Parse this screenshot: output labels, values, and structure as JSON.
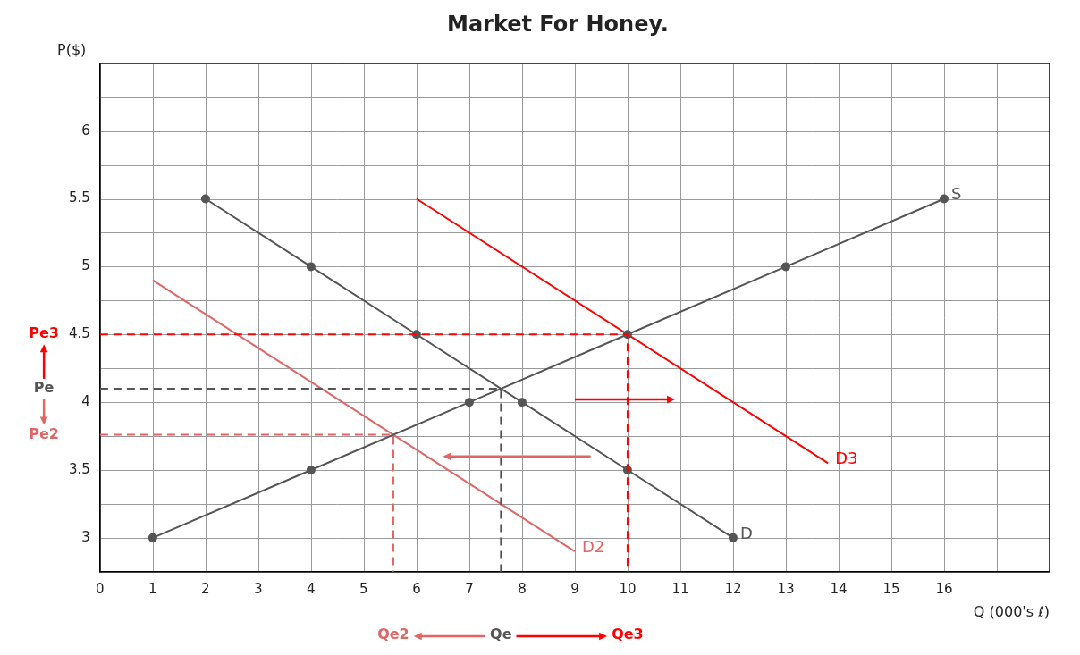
{
  "chart_data": {
    "type": "line",
    "title": "Market For Honey.",
    "x_label": "Q (000's ℓ)",
    "y_label": "P($)",
    "xlim": [
      0,
      18
    ],
    "xticks": [
      0,
      1,
      2,
      3,
      4,
      5,
      6,
      7,
      8,
      9,
      10,
      11,
      12,
      13,
      14,
      15,
      16
    ],
    "ylim": [
      2.75,
      6.5
    ],
    "yticks": [
      3,
      3.5,
      4,
      4.5,
      5,
      5.5,
      6
    ],
    "grid": true,
    "series": [
      {
        "name": "S",
        "color": "#555555",
        "marker": "circle",
        "line_style": "solid",
        "x": [
          1,
          4,
          7,
          10,
          13,
          16
        ],
        "values": [
          3,
          3.5,
          4,
          4.5,
          5,
          5.5
        ]
      },
      {
        "name": "D",
        "color": "#555555",
        "marker": "circle",
        "line_style": "solid",
        "x": [
          2,
          4,
          6,
          8,
          10,
          12
        ],
        "values": [
          5.5,
          5,
          4.5,
          4,
          3.5,
          3
        ]
      },
      {
        "name": "D2",
        "color": "#e06666",
        "marker": "none",
        "line_style": "solid",
        "x": [
          1,
          9
        ],
        "values": [
          4.9,
          2.9
        ]
      },
      {
        "name": "D3",
        "color": "#ff0000",
        "marker": "none",
        "line_style": "solid",
        "x": [
          6,
          13.8
        ],
        "values": [
          5.5,
          3.55
        ]
      }
    ],
    "equilibria": [
      {
        "price_label": "Pe",
        "quantity_label": "Qe",
        "price": 4.1,
        "quantity": 7.6,
        "color": "#555555"
      },
      {
        "price_label": "Pe2",
        "quantity_label": "Qe2",
        "price": 3.76,
        "quantity": 5.56,
        "color": "#e06666"
      },
      {
        "price_label": "Pe3",
        "quantity_label": "Qe3",
        "price": 4.5,
        "quantity": 10,
        "color": "#ff0000"
      }
    ],
    "shifts": [
      {
        "from": [
          9.3,
          3.6
        ],
        "to": [
          6.5,
          3.6
        ],
        "color": "#e06666"
      },
      {
        "from": [
          9.0,
          4.02
        ],
        "to": [
          10.9,
          4.02
        ],
        "color": "#ff0000"
      }
    ]
  }
}
